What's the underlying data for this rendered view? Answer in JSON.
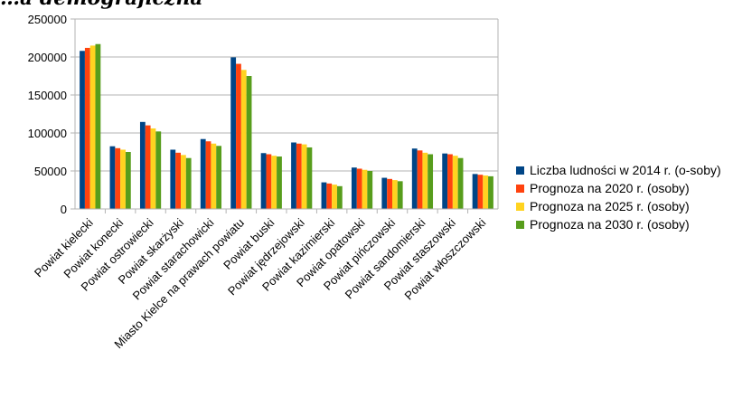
{
  "chart_data": {
    "type": "bar",
    "title": "…a demograficzna",
    "categories": [
      "Powiat kielecki",
      "Powiat konecki",
      "Powiat ostrowiecki",
      "Powiat skarżyski",
      "Powiat starachowicki",
      "Miasto Kielce na prawach powiatu",
      "Powiat buski",
      "Powiat jędrzejowski",
      "Powiat kazimierski",
      "Powiat opatowski",
      "Powiat pińczowski",
      "Powiat sandomierski",
      "Powiat staszowski",
      "Powiat włoszczowski"
    ],
    "series": [
      {
        "name": "Liczba ludności w 2014 r. (osoby)",
        "color": "#004586",
        "values": [
          208000,
          82500,
          114500,
          78000,
          92000,
          199500,
          73500,
          87500,
          35000,
          54500,
          41000,
          79500,
          73000,
          46000
        ]
      },
      {
        "name": "Prognoza na 2020 r. (osoby)",
        "color": "#ff420e",
        "values": [
          212000,
          80000,
          110000,
          74000,
          89000,
          191000,
          72000,
          86000,
          33500,
          53000,
          39500,
          77000,
          72000,
          45000
        ]
      },
      {
        "name": "Prognoza na 2025 r. (osoby)",
        "color": "#ffd320",
        "values": [
          215000,
          78000,
          106000,
          71000,
          86000,
          183000,
          70000,
          85000,
          32000,
          51500,
          38000,
          74000,
          70000,
          44000
        ]
      },
      {
        "name": "Prognoza na 2030 r. (osoby)",
        "color": "#579d1c",
        "values": [
          217000,
          75000,
          102000,
          67000,
          83000,
          175000,
          69000,
          81000,
          30000,
          50000,
          36500,
          72000,
          67000,
          43000
        ]
      }
    ],
    "ylim": [
      0,
      250000
    ],
    "yticks": [
      "0",
      "50000",
      "100000",
      "150000",
      "200000",
      "250000"
    ],
    "grid": true,
    "legend_position": "right",
    "legend": [
      {
        "label": "Liczba ludności w 2014 r. (o-soby)",
        "color": "#004586"
      },
      {
        "label": "Prognoza na 2020 r. (osoby)",
        "color": "#ff420e"
      },
      {
        "label": "Prognoza na 2025 r. (osoby)",
        "color": "#ffd320"
      },
      {
        "label": "Prognoza na 2030 r. (osoby)",
        "color": "#579d1c"
      }
    ]
  }
}
